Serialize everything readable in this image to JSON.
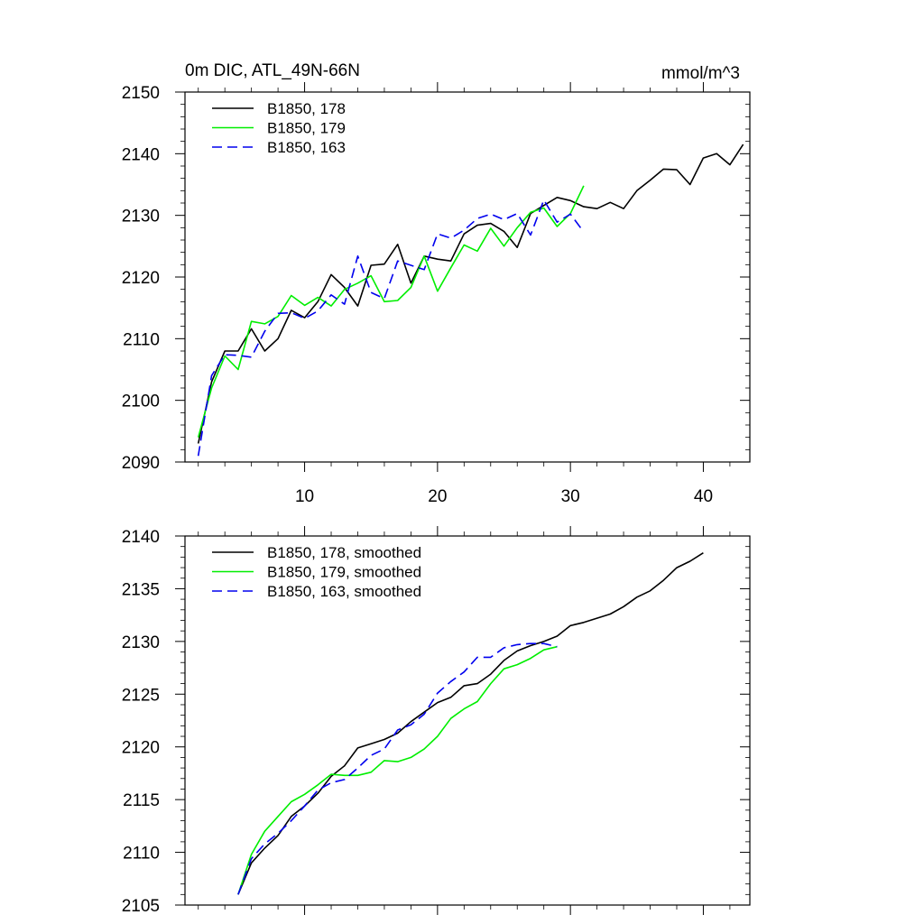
{
  "chart_data": [
    {
      "type": "line",
      "title": "0m DIC, ATL_49N-66N",
      "units": "mmol/m^3",
      "xlabel": "",
      "ylabel": "",
      "xlim": [
        1,
        43.5
      ],
      "ylim": [
        2090,
        2150
      ],
      "xticks": [
        10,
        20,
        30,
        40
      ],
      "yticks": [
        2090,
        2100,
        2110,
        2120,
        2130,
        2140,
        2150
      ],
      "legend_position": "top-left",
      "series": [
        {
          "name": "B1850, 178",
          "color": "#000000",
          "dash": "solid",
          "x": [
            2,
            3,
            4,
            5,
            6,
            7,
            8,
            9,
            10,
            11,
            12,
            13,
            14,
            15,
            16,
            17,
            18,
            19,
            20,
            21,
            22,
            23,
            24,
            25,
            26,
            27,
            28,
            29,
            30,
            31,
            32,
            33,
            34,
            35,
            36,
            37,
            38,
            39,
            40,
            41,
            42,
            43
          ],
          "values": [
            2093,
            2103,
            2108,
            2108,
            2111.6,
            2108,
            2110,
            2114.6,
            2113.4,
            2116,
            2120.4,
            2118.3,
            2115.3,
            2121.9,
            2122.1,
            2125.3,
            2119,
            2123.4,
            2122.9,
            2122.6,
            2127,
            2128.4,
            2128.7,
            2127.4,
            2124.8,
            2130.3,
            2131.6,
            2132.9,
            2132.4,
            2131.4,
            2131.1,
            2132.1,
            2131.1,
            2134,
            2135.7,
            2137.5,
            2137.4,
            2135,
            2139.3,
            2140,
            2138.2,
            2141.5
          ]
        },
        {
          "name": "B1850, 179",
          "color": "#00ee00",
          "dash": "solid",
          "x": [
            2,
            3,
            4,
            5,
            6,
            7,
            8,
            9,
            10,
            11,
            12,
            13,
            14,
            15,
            16,
            17,
            18,
            19,
            20,
            21,
            22,
            23,
            24,
            25,
            26,
            27,
            28,
            29,
            30,
            31
          ],
          "values": [
            2094,
            2102,
            2107.2,
            2105,
            2112.8,
            2112.4,
            2113.6,
            2117,
            2115.4,
            2116.7,
            2115.3,
            2118,
            2119,
            2120.2,
            2116,
            2116.2,
            2118.3,
            2123.4,
            2117.7,
            2121.5,
            2125.2,
            2124.2,
            2127.9,
            2125,
            2128,
            2130.5,
            2131.2,
            2128.2,
            2130.3,
            2134.8
          ]
        },
        {
          "name": "B1850, 163",
          "color": "#0000ee",
          "dash": "dashed",
          "x": [
            2,
            3,
            4,
            5,
            6,
            7,
            8,
            9,
            10,
            11,
            12,
            13,
            14,
            15,
            16,
            17,
            18,
            19,
            20,
            21,
            22,
            23,
            24,
            25,
            26,
            27,
            28,
            29,
            30,
            31
          ],
          "values": [
            2091,
            2104,
            2107.4,
            2107.3,
            2107,
            2111.2,
            2114.1,
            2114.2,
            2113.3,
            2114.5,
            2117.1,
            2115.6,
            2123.4,
            2117.5,
            2116.5,
            2122.6,
            2121.9,
            2121.2,
            2127,
            2126.3,
            2127.6,
            2129.5,
            2130.2,
            2129.3,
            2130.3,
            2126.8,
            2132.5,
            2128.9,
            2130.2,
            2127.3
          ]
        }
      ]
    },
    {
      "type": "line",
      "title": "",
      "xlabel": "",
      "ylabel": "",
      "xlim": [
        1,
        43.5
      ],
      "ylim": [
        2105,
        2140
      ],
      "xticks": [
        10,
        20,
        30,
        40
      ],
      "yticks": [
        2105,
        2110,
        2115,
        2120,
        2125,
        2130,
        2135,
        2140
      ],
      "legend_position": "top-left",
      "series": [
        {
          "name": "B1850, 178, smoothed",
          "color": "#000000",
          "dash": "solid",
          "x": [
            5,
            6,
            7,
            8,
            9,
            10,
            11,
            12,
            13,
            14,
            15,
            16,
            17,
            18,
            19,
            20,
            21,
            22,
            23,
            24,
            25,
            26,
            27,
            28,
            29,
            30,
            31,
            32,
            33,
            34,
            35,
            36,
            37,
            38,
            39,
            40
          ],
          "values": [
            2106,
            2109,
            2110.4,
            2111.6,
            2113.4,
            2114.4,
            2115.6,
            2117.2,
            2118.2,
            2119.9,
            2120.3,
            2120.7,
            2121.3,
            2122.4,
            2123.3,
            2124.2,
            2124.7,
            2125.8,
            2126,
            2126.9,
            2128.2,
            2129.1,
            2129.6,
            2130,
            2130.5,
            2131.5,
            2131.8,
            2132.2,
            2132.6,
            2133.3,
            2134.2,
            2134.8,
            2135.8,
            2137,
            2137.6,
            2138.4
          ]
        },
        {
          "name": "B1850, 179, smoothed",
          "color": "#00ee00",
          "dash": "solid",
          "x": [
            5,
            6,
            7,
            8,
            9,
            10,
            11,
            12,
            13,
            14,
            15,
            16,
            17,
            18,
            19,
            20,
            21,
            22,
            23,
            24,
            25,
            26,
            27,
            28,
            29
          ],
          "values": [
            2106,
            2109.8,
            2112,
            2113.4,
            2114.8,
            2115.5,
            2116.4,
            2117.4,
            2117.3,
            2117.3,
            2117.6,
            2118.7,
            2118.6,
            2119,
            2119.8,
            2121,
            2122.7,
            2123.6,
            2124.3,
            2126,
            2127.4,
            2127.8,
            2128.4,
            2129.2,
            2129.5
          ]
        },
        {
          "name": "B1850, 163, smoothed",
          "color": "#0000ee",
          "dash": "dashed",
          "x": [
            5,
            6,
            7,
            8,
            9,
            10,
            11,
            12,
            13,
            14,
            15,
            16,
            17,
            18,
            19,
            20,
            21,
            22,
            23,
            24,
            25,
            26,
            27,
            28,
            29
          ],
          "values": [
            2106,
            2109.4,
            2110.8,
            2111.8,
            2113,
            2114.4,
            2115.9,
            2116.6,
            2116.9,
            2118,
            2119.2,
            2119.8,
            2121.6,
            2122.1,
            2123.1,
            2125.1,
            2126.2,
            2127.1,
            2128.5,
            2128.5,
            2129.4,
            2129.7,
            2129.8,
            2129.8,
            2129.5
          ]
        }
      ]
    }
  ]
}
